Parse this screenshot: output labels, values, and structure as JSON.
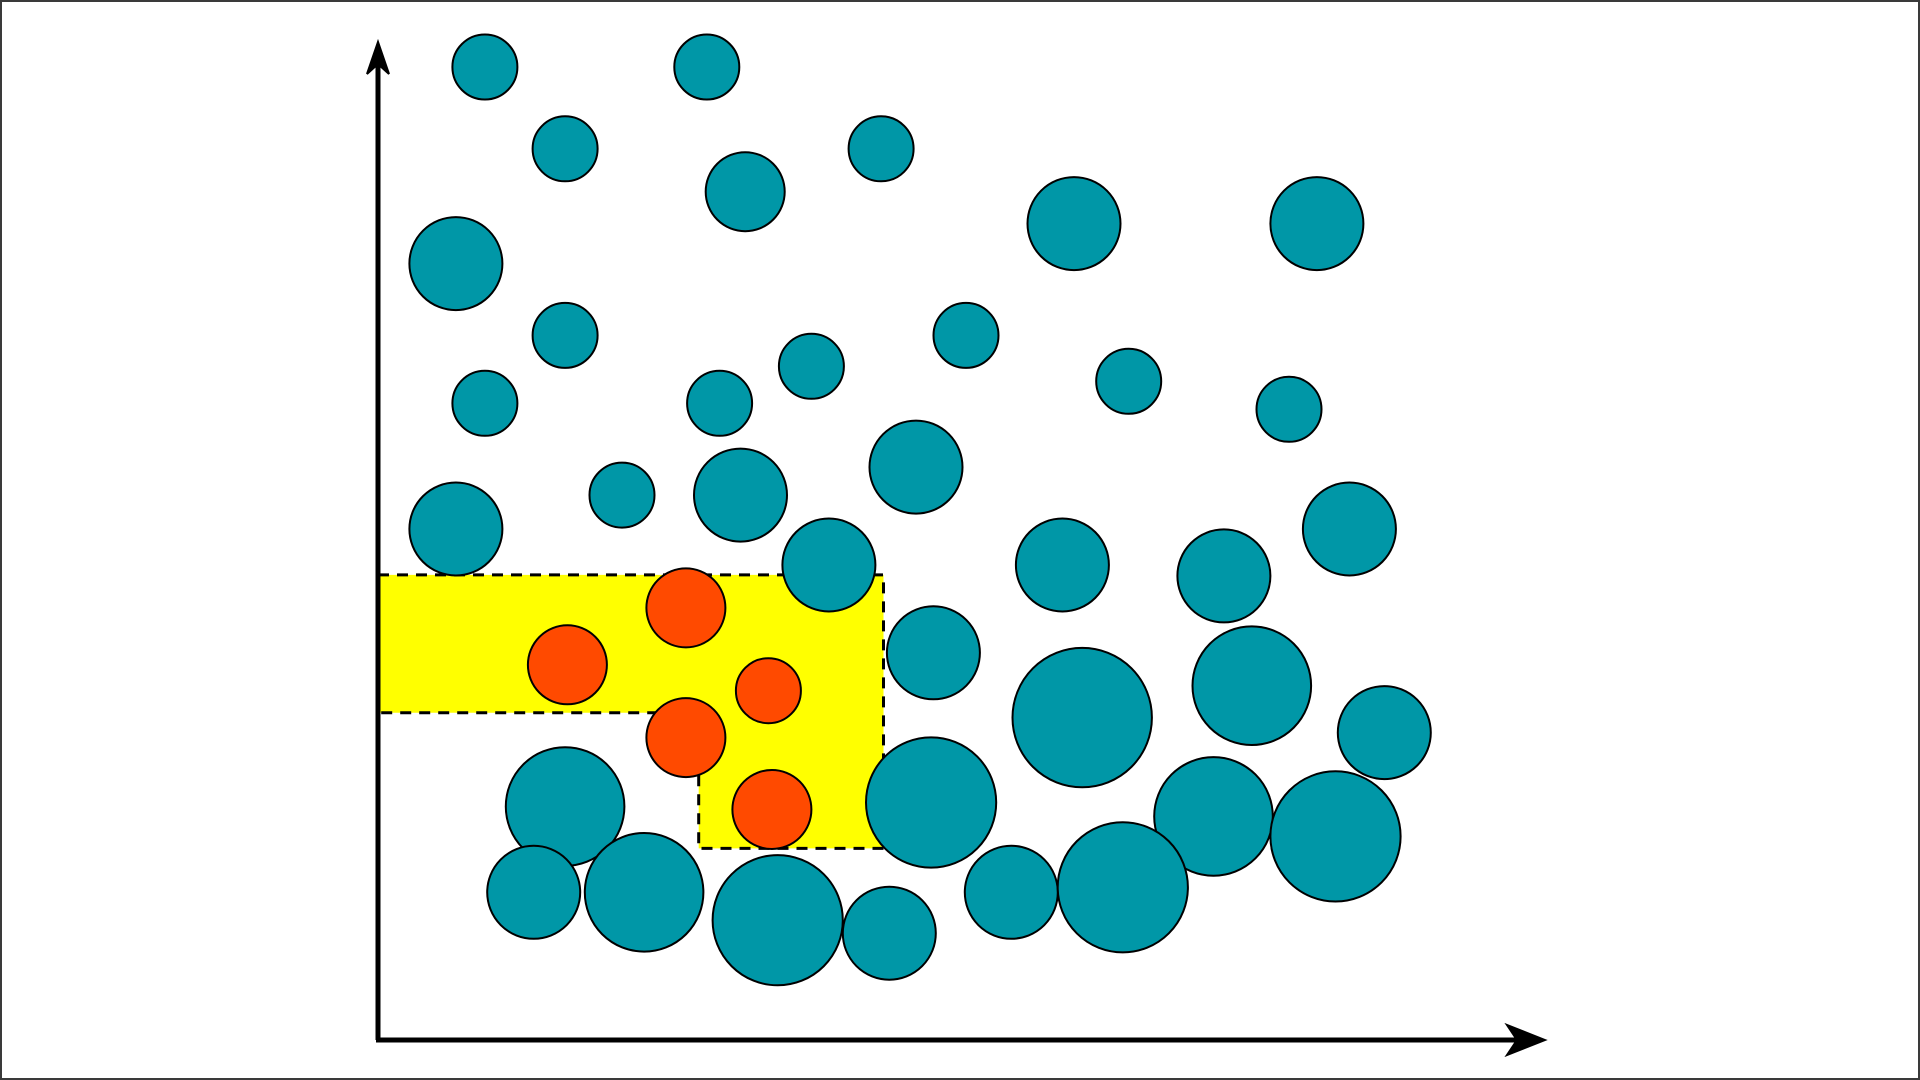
{
  "diagram": {
    "type": "scatter",
    "colors": {
      "background": "#ffffff",
      "axis": "#000000",
      "outside_point": "#0097a7",
      "inside_point": "#ff4a00",
      "region": "#ffff00",
      "region_border": "#000000"
    },
    "axes": {
      "xlim": [
        0,
        100
      ],
      "ylim": [
        0,
        100
      ]
    },
    "region": {
      "shape": "L-shaped",
      "border": "dashed",
      "outline": [
        [
          0,
          46.6
        ],
        [
          43.5,
          46.6
        ],
        [
          43.5,
          19.2
        ],
        [
          27.6,
          19.2
        ],
        [
          27.6,
          32.8
        ],
        [
          0,
          32.8
        ]
      ]
    },
    "outside_points": [
      {
        "x": 9.2,
        "y": 97.5,
        "r": 2.8
      },
      {
        "x": 28.3,
        "y": 97.5,
        "r": 2.8
      },
      {
        "x": 16.1,
        "y": 89.3,
        "r": 2.8
      },
      {
        "x": 31.6,
        "y": 85.0,
        "r": 3.4
      },
      {
        "x": 43.3,
        "y": 89.3,
        "r": 2.8
      },
      {
        "x": 59.9,
        "y": 81.8,
        "r": 4.0
      },
      {
        "x": 80.8,
        "y": 81.8,
        "r": 4.0
      },
      {
        "x": 6.7,
        "y": 77.8,
        "r": 4.0
      },
      {
        "x": 16.1,
        "y": 70.6,
        "r": 2.8
      },
      {
        "x": 37.3,
        "y": 67.5,
        "r": 2.8
      },
      {
        "x": 50.6,
        "y": 70.6,
        "r": 2.8
      },
      {
        "x": 64.6,
        "y": 66.0,
        "r": 2.8
      },
      {
        "x": 78.4,
        "y": 63.2,
        "r": 2.8
      },
      {
        "x": 9.2,
        "y": 63.8,
        "r": 2.8
      },
      {
        "x": 29.4,
        "y": 63.8,
        "r": 2.8
      },
      {
        "x": 46.3,
        "y": 57.4,
        "r": 4.0
      },
      {
        "x": 21.0,
        "y": 54.6,
        "r": 2.8
      },
      {
        "x": 31.2,
        "y": 54.6,
        "r": 4.0
      },
      {
        "x": 6.7,
        "y": 51.2,
        "r": 4.0
      },
      {
        "x": 83.6,
        "y": 51.2,
        "r": 4.0
      },
      {
        "x": 38.8,
        "y": 47.6,
        "r": 4.0
      },
      {
        "x": 58.9,
        "y": 47.6,
        "r": 4.0
      },
      {
        "x": 72.8,
        "y": 46.5,
        "r": 4.0
      },
      {
        "x": 47.8,
        "y": 38.8,
        "r": 4.0
      },
      {
        "x": 75.2,
        "y": 35.5,
        "r": 5.1
      },
      {
        "x": 60.6,
        "y": 32.3,
        "r": 6.0
      },
      {
        "x": 86.6,
        "y": 30.8,
        "r": 4.0
      },
      {
        "x": 16.1,
        "y": 23.4,
        "r": 5.1
      },
      {
        "x": 47.6,
        "y": 23.8,
        "r": 5.6
      },
      {
        "x": 71.9,
        "y": 22.4,
        "r": 5.1
      },
      {
        "x": 82.4,
        "y": 20.4,
        "r": 5.6
      },
      {
        "x": 13.4,
        "y": 14.8,
        "r": 4.0
      },
      {
        "x": 22.9,
        "y": 14.8,
        "r": 5.1
      },
      {
        "x": 34.4,
        "y": 12.0,
        "r": 5.6
      },
      {
        "x": 44.0,
        "y": 10.7,
        "r": 4.0
      },
      {
        "x": 54.5,
        "y": 14.8,
        "r": 4.0
      },
      {
        "x": 64.1,
        "y": 15.3,
        "r": 5.6
      }
    ],
    "inside_points": [
      {
        "x": 26.5,
        "y": 43.3,
        "r": 3.4
      },
      {
        "x": 16.3,
        "y": 37.6,
        "r": 3.4
      },
      {
        "x": 33.6,
        "y": 35.0,
        "r": 2.8
      },
      {
        "x": 26.5,
        "y": 30.3,
        "r": 3.4
      },
      {
        "x": 33.9,
        "y": 23.1,
        "r": 3.4
      }
    ]
  }
}
